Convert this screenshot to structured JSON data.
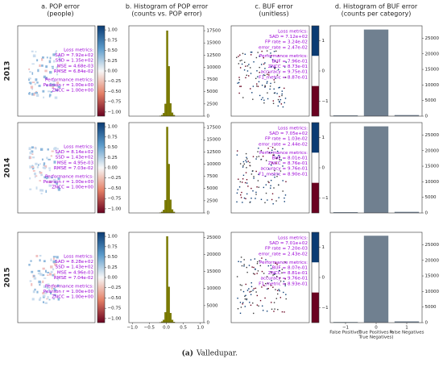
{
  "column_titles": [
    [
      "a. POP error",
      "(people)"
    ],
    [
      "b. Histogram of POP error",
      "(counts vs. POP error)"
    ],
    [
      "c. BUF error",
      "(unitless)"
    ],
    [
      "d. Histogram of BUF error",
      "(counts per category)"
    ]
  ],
  "row_labels": [
    "2013",
    "2014",
    "2015"
  ],
  "caption_label": "(a)",
  "caption_text": "Valledupar.",
  "chart_data": [
    {
      "type": "map",
      "colorbar_lim": [
        -1.1,
        1.1
      ],
      "colorbar_ticks": [
        {
          "value": 1,
          "label": "1.00"
        },
        {
          "value": 0.75,
          "label": "0.75"
        },
        {
          "value": 0.5,
          "label": "0.50"
        },
        {
          "value": 0.25,
          "label": "0.25"
        },
        {
          "value": 0,
          "label": "0.00"
        },
        {
          "value": -0.25,
          "label": "−0.25"
        },
        {
          "value": -0.5,
          "label": "−0.50"
        },
        {
          "value": -0.75,
          "label": "−0.75"
        },
        {
          "value": -1,
          "label": "−1.00"
        }
      ],
      "annotations": [
        "Loss metrics:",
        "SAD = 7.92e+02",
        "SSD = 1.35e+02",
        "MSE = 4.68e-03",
        "RMSE = 6.84e-02",
        "Performance metrics:",
        "Pearson r = 1.00e+00",
        "ZNCC = 1.00e+00"
      ]
    },
    {
      "type": "histogram",
      "color": "#808000",
      "bins": [
        -0.2,
        -0.15,
        -0.1,
        -0.05,
        0,
        0.05,
        0.1,
        0.15,
        0.2,
        0.25
      ],
      "counts": [
        50,
        200,
        600,
        2500,
        17500,
        10200,
        2600,
        700,
        200
      ],
      "xlim": [
        -1.1,
        1.1
      ],
      "ylim": [
        0,
        18500
      ],
      "yticks": [
        0,
        2500,
        5000,
        7500,
        10000,
        12500,
        15000,
        17500
      ]
    },
    {
      "type": "map",
      "colorbar_lim": [
        -1.5,
        1.5
      ],
      "colorbar_ticks": [
        1,
        0,
        {
          "value": -1,
          "label": "−1"
        }
      ],
      "annotations": [
        "Loss metrics:",
        "SAD = 7.12e+02",
        "FP rate = 3.24e-02",
        "error_rate = 2.47e-02",
        "Performance metrics:",
        "BUF = 7.96e-01",
        "ZNCC = 8.73e-01",
        "accuracy = 9.75e-01",
        "F1_metric = 8.87e-01"
      ]
    },
    {
      "type": "bar",
      "color": "#708090",
      "categories": [
        null,
        null,
        null
      ],
      "values": [
        250,
        27800,
        350
      ],
      "ylim": [
        0,
        29000
      ],
      "yticks": [
        0,
        5000,
        10000,
        15000,
        20000,
        25000
      ]
    },
    {
      "type": "map",
      "colorbar_lim": [
        -1.1,
        1.1
      ],
      "colorbar_ticks": [
        {
          "value": 1,
          "label": "1.00"
        },
        {
          "value": 0.75,
          "label": "0.75"
        },
        {
          "value": 0.5,
          "label": "0.50"
        },
        {
          "value": 0.25,
          "label": "0.25"
        },
        {
          "value": 0,
          "label": "0.00"
        },
        {
          "value": -0.25,
          "label": "−0.25"
        },
        {
          "value": -0.5,
          "label": "−0.50"
        },
        {
          "value": -0.75,
          "label": "−0.75"
        },
        {
          "value": -1,
          "label": "−1.00"
        }
      ],
      "annotations": [
        "Loss metrics:",
        "SAD = 8.14e+02",
        "SSD = 1.43e+02",
        "MSE = 4.95e-03",
        "RMSE = 7.03e-02",
        "Performance metrics:",
        "Pearson r = 1.00e+00",
        "ZNCC = 1.00e+00"
      ]
    },
    {
      "type": "histogram",
      "color": "#808000",
      "bins": [
        -0.2,
        -0.15,
        -0.1,
        -0.05,
        0,
        0.05,
        0.1,
        0.15,
        0.2,
        0.25
      ],
      "counts": [
        50,
        200,
        600,
        2600,
        17600,
        10000,
        2700,
        700,
        200
      ],
      "xlim": [
        -1.1,
        1.1
      ],
      "ylim": [
        0,
        18500
      ],
      "yticks": [
        0,
        2500,
        5000,
        7500,
        10000,
        12500,
        15000,
        17500
      ]
    },
    {
      "type": "map",
      "colorbar_lim": [
        -1.5,
        1.5
      ],
      "colorbar_ticks": [
        1,
        0,
        {
          "value": -1,
          "label": "−1"
        }
      ],
      "annotations": [
        "Loss metrics:",
        "SAD = 7.05e+02",
        "FP rate = 1.03e-02",
        "error_rate = 2.44e-02",
        "Performance metrics:",
        "BUF = 8.01e-01",
        "ZNCC = 8.76e-01",
        "accuracy = 9.76e-01",
        "F1_metric = 8.90e-01"
      ]
    },
    {
      "type": "bar",
      "color": "#708090",
      "categories": [
        null,
        null,
        null
      ],
      "values": [
        250,
        27800,
        350
      ],
      "ylim": [
        0,
        29000
      ],
      "yticks": [
        0,
        5000,
        10000,
        15000,
        20000,
        25000
      ]
    },
    {
      "type": "map",
      "colorbar_lim": [
        -1.1,
        1.1
      ],
      "colorbar_ticks": [
        {
          "value": 1,
          "label": "1.00"
        },
        {
          "value": 0.75,
          "label": "0.75"
        },
        {
          "value": 0.5,
          "label": "0.50"
        },
        {
          "value": 0.25,
          "label": "0.25"
        },
        {
          "value": 0,
          "label": "0.00"
        },
        {
          "value": -0.25,
          "label": "−0.25"
        },
        {
          "value": -0.5,
          "label": "−0.50"
        },
        {
          "value": -0.75,
          "label": "−0.75"
        },
        {
          "value": -1,
          "label": "−1.00"
        }
      ],
      "annotations": [
        "Loss metrics:",
        "SAD = 8.28e+02",
        "SSD = 1.43e+02",
        "MSE = 4.96e-03",
        "RMSE = 7.04e-02",
        "Performance metrics:",
        "Pearson r = 1.00e+00",
        "ZNCC = 1.00e+00"
      ]
    },
    {
      "type": "histogram",
      "color": "#808000",
      "bins": [
        -0.2,
        -0.15,
        -0.1,
        -0.05,
        0,
        0.05,
        0.1,
        0.15,
        0.2,
        0.25
      ],
      "counts": [
        50,
        300,
        800,
        3000,
        25300,
        10500,
        2800,
        800,
        200
      ],
      "xlim": [
        -1.1,
        1.1
      ],
      "ylim": [
        0,
        26500
      ],
      "yticks": [
        0,
        5000,
        10000,
        15000,
        20000,
        25000
      ],
      "xticks": [
        {
          "value": -1,
          "label": "−1.0"
        },
        {
          "value": -0.5,
          "label": "−0.5"
        },
        {
          "value": 0,
          "label": "0.0"
        },
        {
          "value": 0.5,
          "label": "0.5"
        },
        {
          "value": 1,
          "label": "1.0"
        }
      ]
    },
    {
      "type": "map",
      "colorbar_lim": [
        -1.5,
        1.5
      ],
      "colorbar_ticks": [
        1,
        0,
        {
          "value": -1,
          "label": "−1"
        }
      ],
      "annotations": [
        "Loss metrics:",
        "SAD = 7.01e+02",
        "FP rate = 7.20e-03",
        "error_rate = 2.43e-02",
        "Performance metrics:",
        "BUF = 8.07e-01",
        "ZNCC = 8.81e-01",
        "accuracy = 9.76e-01",
        "F1_metric = 8.93e-01"
      ]
    },
    {
      "type": "bar",
      "color": "#708090",
      "categories": [
        "−1",
        "0",
        "1"
      ],
      "category_names": [
        "False Positives",
        "True Positives +",
        "False Negatives"
      ],
      "xlabel": "True Negatives)",
      "values": [
        200,
        27900,
        400
      ],
      "ylim": [
        0,
        29000
      ],
      "yticks": [
        0,
        5000,
        10000,
        15000,
        20000,
        25000
      ]
    }
  ]
}
